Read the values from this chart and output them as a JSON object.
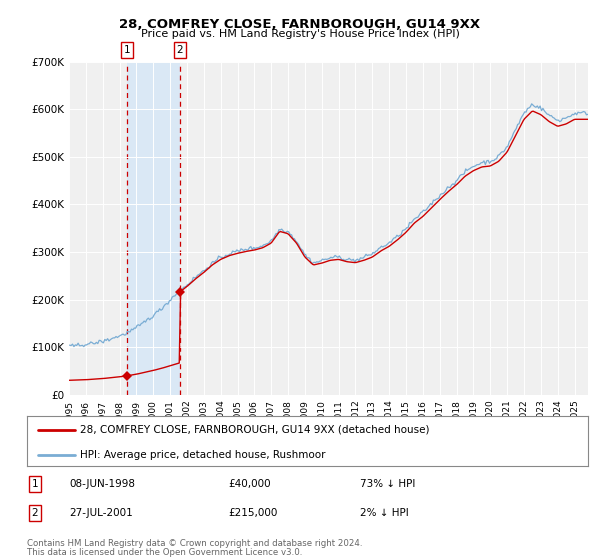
{
  "title": "28, COMFREY CLOSE, FARNBOROUGH, GU14 9XX",
  "subtitle": "Price paid vs. HM Land Registry's House Price Index (HPI)",
  "legend_line1": "28, COMFREY CLOSE, FARNBOROUGH, GU14 9XX (detached house)",
  "legend_line2": "HPI: Average price, detached house, Rushmoor",
  "transaction1_date": "08-JUN-1998",
  "transaction1_price": 40000,
  "transaction1_label": "73% ↓ HPI",
  "transaction2_date": "27-JUL-2001",
  "transaction2_price": 215000,
  "transaction2_label": "2% ↓ HPI",
  "footer": "Contains HM Land Registry data © Crown copyright and database right 2024.\nThis data is licensed under the Open Government Licence v3.0.",
  "hpi_color": "#7aadd4",
  "price_color": "#cc0000",
  "bg_color": "#ffffff",
  "plot_bg_color": "#f0f0f0",
  "highlight_color": "#dae8f5",
  "ylim": [
    0,
    700000
  ],
  "yticks": [
    0,
    100000,
    200000,
    300000,
    400000,
    500000,
    600000,
    700000
  ],
  "ytick_labels": [
    "£0",
    "£100K",
    "£200K",
    "£300K",
    "£400K",
    "£500K",
    "£600K",
    "£700K"
  ],
  "xstart_year": 1995,
  "xend_year": 2025,
  "t1_year": 1998.46,
  "t2_year": 2001.58,
  "t1_price": 40000,
  "t2_price": 215000,
  "hpi_key_times": [
    1995.0,
    1995.5,
    1996.0,
    1996.5,
    1997.0,
    1997.5,
    1998.0,
    1998.5,
    1999.0,
    1999.5,
    2000.0,
    2000.5,
    2001.0,
    2001.5,
    2002.0,
    2002.5,
    2003.0,
    2003.5,
    2004.0,
    2004.5,
    2005.0,
    2005.5,
    2006.0,
    2006.5,
    2007.0,
    2007.5,
    2008.0,
    2008.5,
    2009.0,
    2009.5,
    2010.0,
    2010.5,
    2011.0,
    2011.5,
    2012.0,
    2012.5,
    2013.0,
    2013.5,
    2014.0,
    2014.5,
    2015.0,
    2015.5,
    2016.0,
    2016.5,
    2017.0,
    2017.5,
    2018.0,
    2018.5,
    2019.0,
    2019.5,
    2020.0,
    2020.5,
    2021.0,
    2021.5,
    2022.0,
    2022.5,
    2023.0,
    2023.5,
    2024.0,
    2024.5,
    2025.0
  ],
  "hpi_key_vals": [
    100000,
    102000,
    104000,
    108000,
    112000,
    118000,
    124000,
    132000,
    142000,
    155000,
    168000,
    183000,
    200000,
    218000,
    232000,
    248000,
    262000,
    278000,
    290000,
    298000,
    303000,
    307000,
    310000,
    315000,
    325000,
    350000,
    345000,
    325000,
    295000,
    278000,
    282000,
    288000,
    290000,
    285000,
    283000,
    288000,
    295000,
    308000,
    318000,
    332000,
    348000,
    368000,
    382000,
    400000,
    418000,
    435000,
    450000,
    468000,
    480000,
    488000,
    490000,
    500000,
    520000,
    555000,
    590000,
    608000,
    600000,
    585000,
    575000,
    580000,
    590000
  ]
}
